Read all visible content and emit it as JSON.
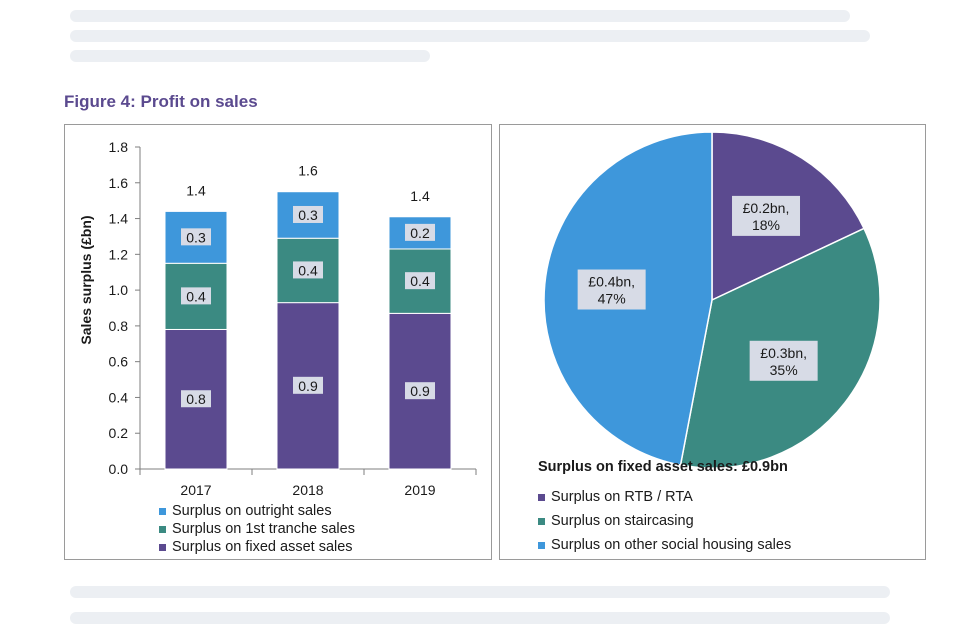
{
  "figure": {
    "title": "Figure 4: Profit on sales"
  },
  "colors": {
    "purple": "#5b4a8f",
    "teal": "#3b8a82",
    "blue": "#3e97db",
    "label_box": "#d7dbe6",
    "axis": "#7f7f7f"
  },
  "chart_data": [
    {
      "type": "bar",
      "stacked": true,
      "title": "",
      "xlabel": "",
      "ylabel": "Sales surplus (£bn)",
      "ylim": [
        0,
        1.8
      ],
      "yticks": [
        "0.0",
        "0.2",
        "0.4",
        "0.6",
        "0.8",
        "1.0",
        "1.2",
        "1.4",
        "1.6",
        "1.8"
      ],
      "grid": false,
      "categories": [
        "2017",
        "2018",
        "2019"
      ],
      "series": [
        {
          "name": "Surplus on fixed asset sales",
          "color_key": "purple",
          "values": [
            0.78,
            0.93,
            0.87
          ],
          "labels": [
            "0.8",
            "0.9",
            "0.9"
          ]
        },
        {
          "name": "Surplus on 1st tranche sales",
          "color_key": "teal",
          "values": [
            0.37,
            0.36,
            0.36
          ],
          "labels": [
            "0.4",
            "0.4",
            "0.4"
          ]
        },
        {
          "name": "Surplus on outright sales",
          "color_key": "blue",
          "values": [
            0.29,
            0.26,
            0.18
          ],
          "labels": [
            "0.3",
            "0.3",
            "0.2"
          ]
        }
      ],
      "totals": [
        1.44,
        1.55,
        1.41
      ],
      "total_labels": [
        "1.4",
        "1.6",
        "1.4"
      ],
      "legend_order": [
        2,
        1,
        0
      ],
      "legend_position": "bottom"
    },
    {
      "type": "pie",
      "title": "Surplus on fixed asset sales: £0.9bn",
      "slices": [
        {
          "name": "Surplus on RTB / RTA",
          "value": 0.2,
          "percent": 18,
          "label_line1": "£0.2bn,",
          "label_line2": "18%",
          "color_key": "purple"
        },
        {
          "name": "Surplus on staircasing",
          "value": 0.3,
          "percent": 35,
          "label_line1": "£0.3bn,",
          "label_line2": "35%",
          "color_key": "teal"
        },
        {
          "name": "Surplus on other social housing sales",
          "value": 0.4,
          "percent": 47,
          "label_line1": "£0.4bn,",
          "label_line2": "47%",
          "color_key": "blue"
        }
      ],
      "start_angle_deg": 0,
      "direction": "clockwise",
      "legend_position": "bottom"
    }
  ]
}
